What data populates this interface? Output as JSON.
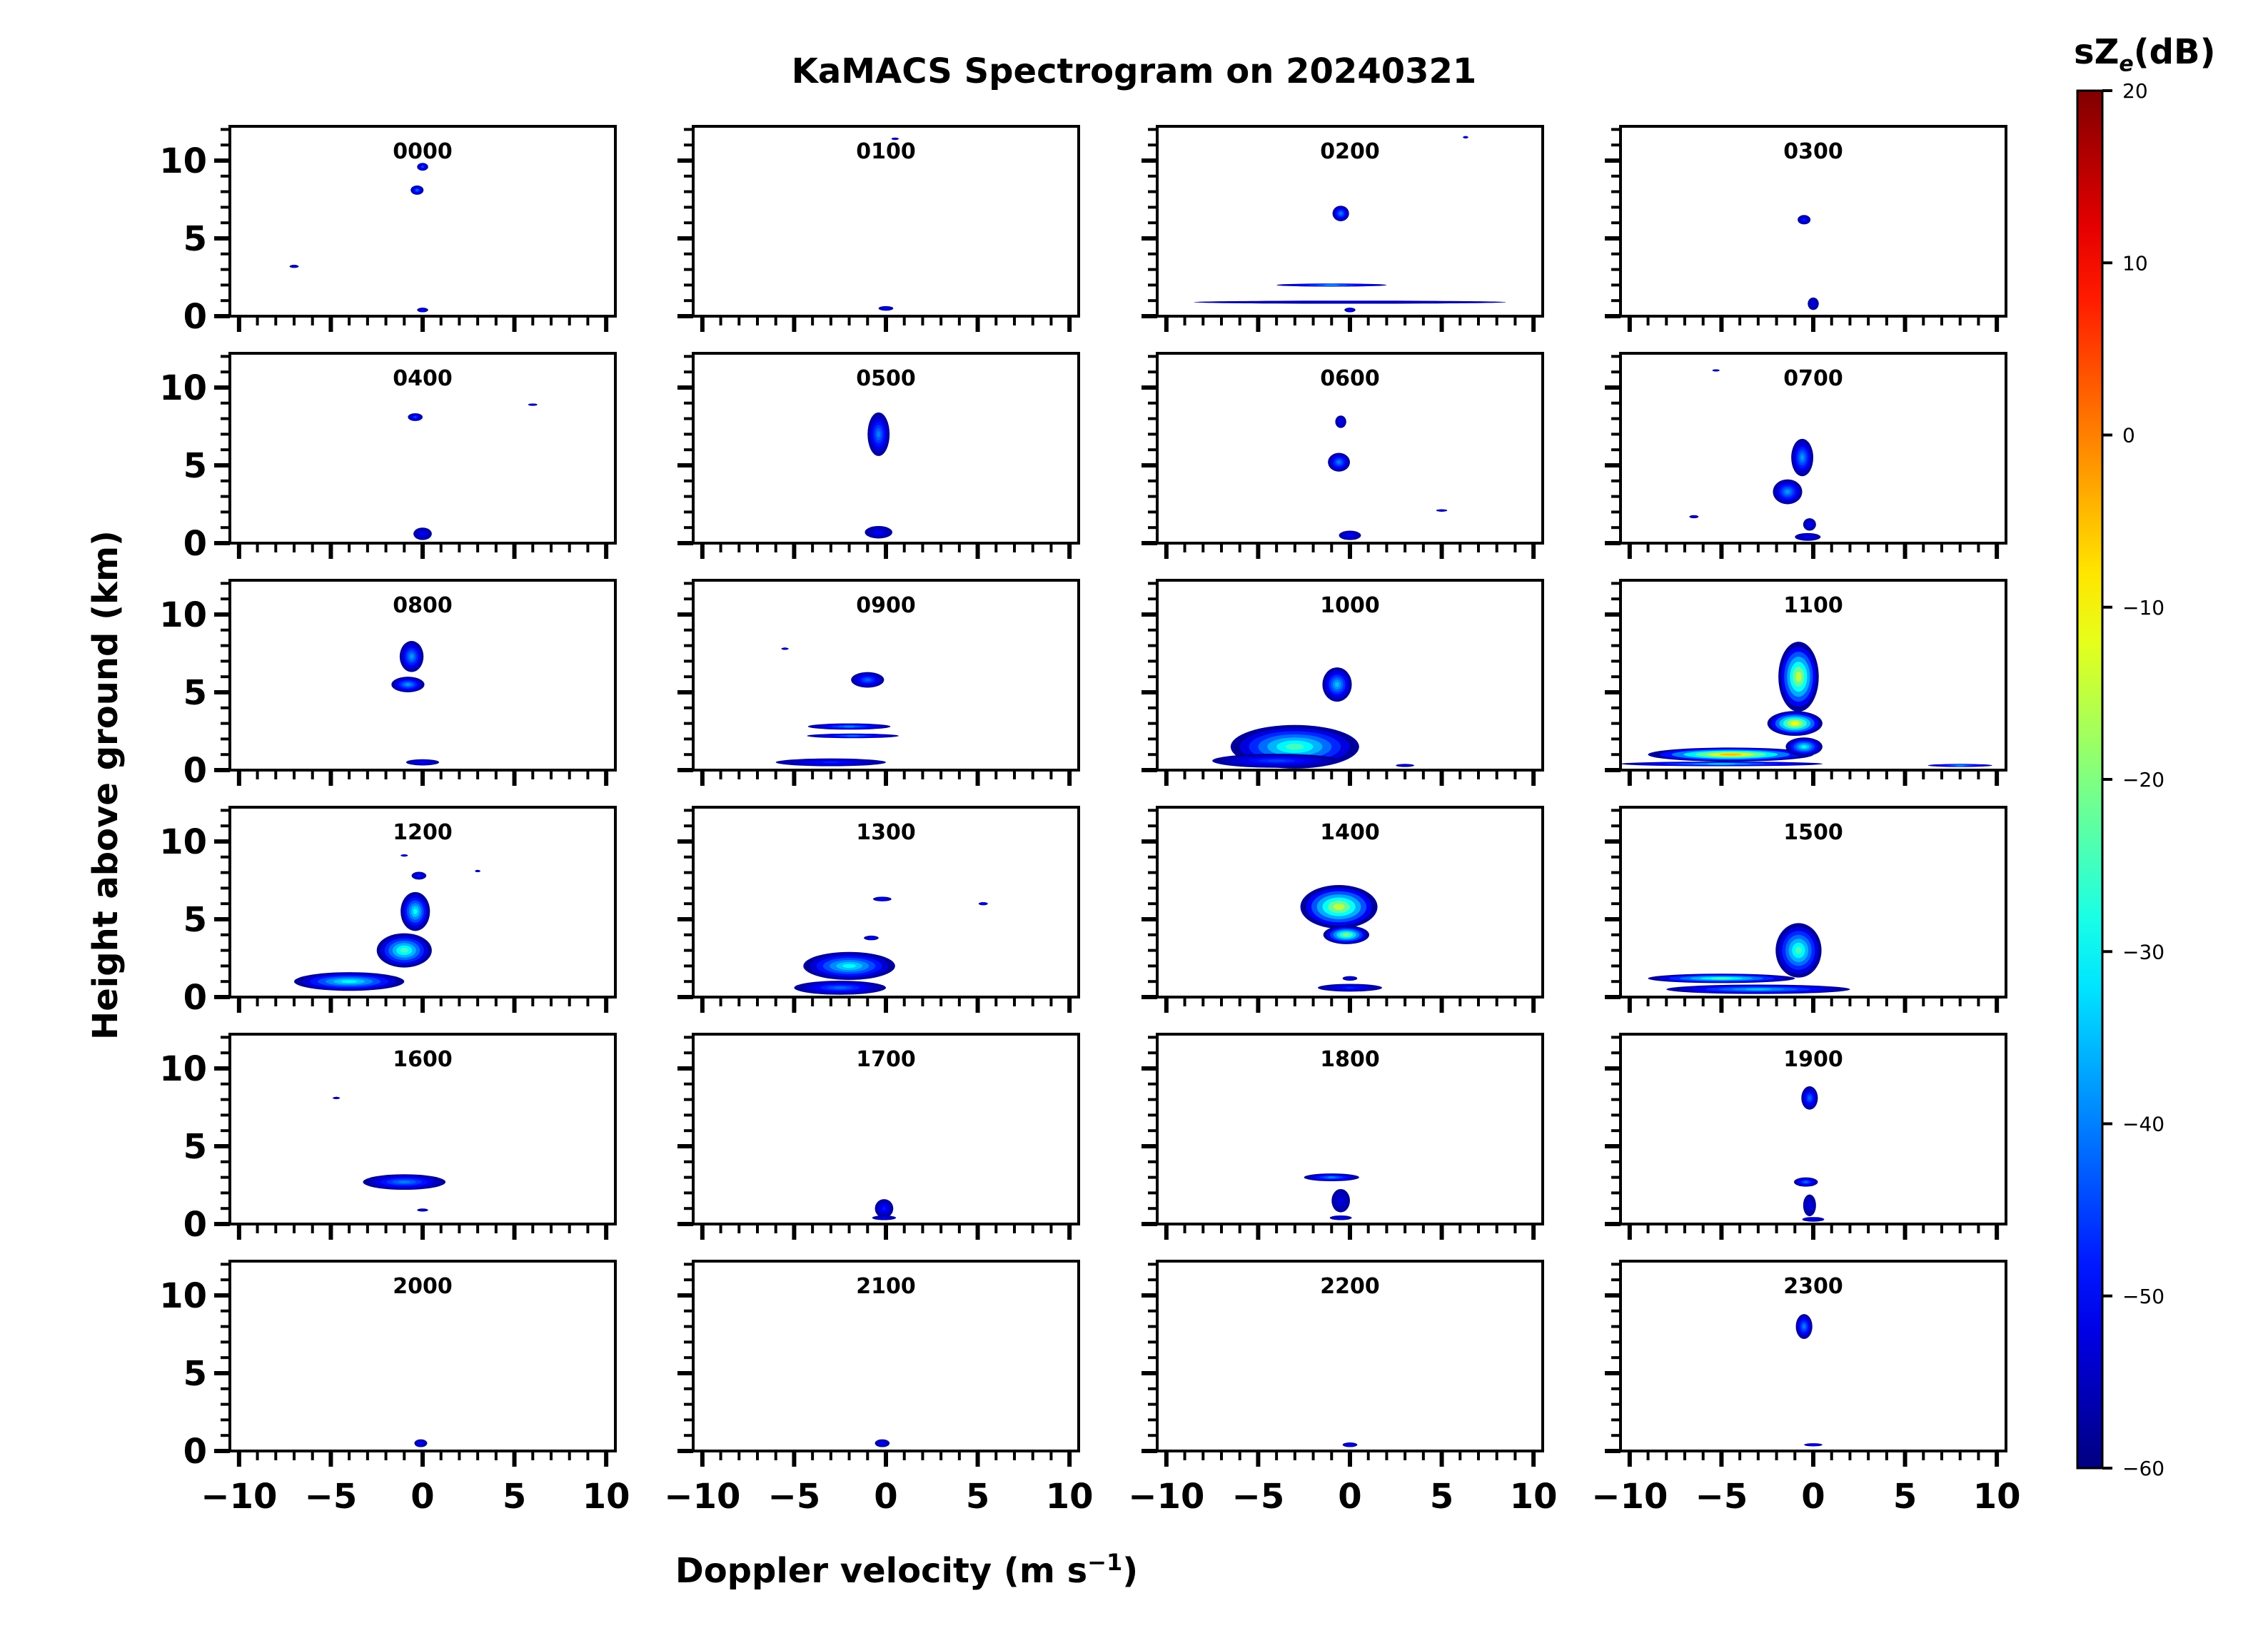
{
  "chart_data": {
    "type": "heatmap",
    "title": "KaMACS Spectrogram on 20240321",
    "xlabel_main": "Doppler velocity (m s",
    "xlabel_sup": "−1",
    "xlabel_tail": ")",
    "ylabel": "Height above ground (km)",
    "xlim": [
      -10.5,
      10.5
    ],
    "ylim": [
      0,
      12.2
    ],
    "x_ticks": [
      -10,
      -5,
      0,
      5,
      10
    ],
    "x_tick_labels": [
      "−10",
      "−5",
      "0",
      "5",
      "10"
    ],
    "y_ticks": [
      0,
      5,
      10
    ],
    "y_tick_labels": [
      "0",
      "5",
      "10"
    ],
    "colorbar": {
      "label_main": "sZ",
      "label_sub": "e",
      "label_tail": "(dB)",
      "range": [
        -60,
        20
      ],
      "ticks": [
        20,
        10,
        0,
        -10,
        -20,
        -30,
        -40,
        -50,
        -60
      ],
      "tick_labels": [
        "20",
        "10",
        "0",
        "−10",
        "−20",
        "−30",
        "−40",
        "−50",
        "−60"
      ],
      "colormap": "jet"
    },
    "panels": [
      {
        "label": "0000",
        "blobs": [
          [
            0,
            9.6,
            0.6,
            0.5,
            -45
          ],
          [
            -0.3,
            8.1,
            0.7,
            0.6,
            -42
          ],
          [
            0,
            0.4,
            0.6,
            0.3,
            -50
          ],
          [
            -7,
            3.2,
            0.5,
            0.2,
            -55
          ]
        ]
      },
      {
        "label": "0100",
        "blobs": [
          [
            0,
            0.5,
            0.8,
            0.3,
            -50
          ],
          [
            0.5,
            11.4,
            0.4,
            0.15,
            -55
          ]
        ]
      },
      {
        "label": "0200",
        "blobs": [
          [
            -0.5,
            6.6,
            0.9,
            1.0,
            -40
          ],
          [
            -1,
            2.0,
            6,
            0.2,
            -40
          ],
          [
            0,
            0.9,
            17,
            0.2,
            -55
          ],
          [
            0,
            0.4,
            0.6,
            0.3,
            -50
          ],
          [
            6.3,
            11.5,
            0.3,
            0.1,
            -55
          ]
        ]
      },
      {
        "label": "0300",
        "blobs": [
          [
            -0.5,
            6.2,
            0.7,
            0.6,
            -48
          ],
          [
            0,
            0.8,
            0.6,
            0.8,
            -52
          ]
        ]
      },
      {
        "label": "0400",
        "blobs": [
          [
            -0.4,
            8.1,
            0.8,
            0.5,
            -45
          ],
          [
            0,
            0.6,
            1.0,
            0.8,
            -50
          ],
          [
            6,
            8.9,
            0.5,
            0.15,
            -55
          ]
        ]
      },
      {
        "label": "0500",
        "blobs": [
          [
            -0.4,
            7.0,
            1.2,
            2.8,
            -40
          ],
          [
            -0.4,
            0.7,
            1.5,
            0.8,
            -50
          ]
        ]
      },
      {
        "label": "0600",
        "blobs": [
          [
            -0.6,
            5.2,
            1.2,
            1.2,
            -40
          ],
          [
            -0.5,
            7.8,
            0.6,
            0.8,
            -50
          ],
          [
            0,
            0.5,
            1.2,
            0.6,
            -50
          ],
          [
            5,
            2.1,
            0.6,
            0.15,
            -55
          ]
        ]
      },
      {
        "label": "0700",
        "blobs": [
          [
            -0.6,
            5.5,
            1.2,
            2.4,
            -38
          ],
          [
            -1.4,
            3.3,
            1.6,
            1.6,
            -38
          ],
          [
            -0.2,
            1.2,
            0.7,
            0.8,
            -50
          ],
          [
            -0.3,
            0.4,
            1.4,
            0.5,
            -50
          ],
          [
            -5.3,
            11.1,
            0.4,
            0.12,
            -55
          ],
          [
            -6.5,
            1.7,
            0.5,
            0.2,
            -55
          ]
        ]
      },
      {
        "label": "0800",
        "blobs": [
          [
            -0.6,
            7.3,
            1.3,
            2.0,
            -38
          ],
          [
            -0.8,
            5.5,
            1.8,
            1.0,
            -38
          ],
          [
            0,
            0.5,
            1.8,
            0.4,
            -50
          ]
        ]
      },
      {
        "label": "0900",
        "blobs": [
          [
            -1,
            5.8,
            1.8,
            1.0,
            -42
          ],
          [
            -2,
            2.8,
            4.5,
            0.4,
            -40
          ],
          [
            -1.8,
            2.2,
            5,
            0.3,
            -42
          ],
          [
            -3,
            0.5,
            6,
            0.5,
            -48
          ],
          [
            -5.5,
            7.8,
            0.4,
            0.1,
            -55
          ]
        ]
      },
      {
        "label": "1000",
        "blobs": [
          [
            -0.7,
            5.5,
            1.6,
            2.2,
            -35
          ],
          [
            -3,
            1.5,
            7,
            2.8,
            -25
          ],
          [
            -4,
            0.6,
            7,
            0.9,
            -45
          ],
          [
            3,
            0.3,
            1,
            0.2,
            -55
          ]
        ]
      },
      {
        "label": "1100",
        "blobs": [
          [
            -0.8,
            6,
            2.2,
            4.5,
            -15
          ],
          [
            -1,
            3.0,
            3,
            1.6,
            -10
          ],
          [
            -4.5,
            1.0,
            9,
            0.9,
            -5
          ],
          [
            -5,
            0.4,
            11,
            0.3,
            -35
          ],
          [
            8,
            0.3,
            3.5,
            0.2,
            -40
          ],
          [
            -0.5,
            1.5,
            2,
            1.2,
            -30
          ]
        ]
      },
      {
        "label": "1200",
        "blobs": [
          [
            -0.4,
            5.5,
            1.6,
            2.5,
            -30
          ],
          [
            -1,
            3.0,
            3,
            2.2,
            -25
          ],
          [
            -4,
            1.0,
            6,
            1.2,
            -30
          ],
          [
            -0.2,
            7.8,
            0.8,
            0.5,
            -48
          ],
          [
            3,
            8.1,
            0.3,
            0.1,
            -55
          ],
          [
            -1,
            9.1,
            0.4,
            0.1,
            -55
          ]
        ]
      },
      {
        "label": "1300",
        "blobs": [
          [
            -2,
            2.0,
            5,
            1.8,
            -30
          ],
          [
            -2.5,
            0.6,
            5,
            0.9,
            -42
          ],
          [
            -0.2,
            6.3,
            1,
            0.3,
            -50
          ],
          [
            5.3,
            6.0,
            0.5,
            0.2,
            -50
          ],
          [
            -0.8,
            3.8,
            0.8,
            0.3,
            -50
          ]
        ]
      },
      {
        "label": "1400",
        "blobs": [
          [
            -0.6,
            5.8,
            4.2,
            2.8,
            -15
          ],
          [
            -0.2,
            4.0,
            2.5,
            1.2,
            -20
          ],
          [
            0,
            0.6,
            3.5,
            0.5,
            -48
          ],
          [
            0,
            1.2,
            0.8,
            0.3,
            -52
          ]
        ]
      },
      {
        "label": "1500",
        "blobs": [
          [
            -0.8,
            3.0,
            2.5,
            3.5,
            -25
          ],
          [
            -5,
            1.2,
            8,
            0.6,
            -25
          ],
          [
            -3,
            0.5,
            10,
            0.6,
            -35
          ]
        ]
      },
      {
        "label": "1600",
        "blobs": [
          [
            -1,
            2.7,
            4.5,
            1.0,
            -40
          ],
          [
            0,
            0.9,
            0.6,
            0.2,
            -55
          ],
          [
            -4.7,
            8.1,
            0.4,
            0.12,
            -55
          ]
        ]
      },
      {
        "label": "1700",
        "blobs": [
          [
            -0.1,
            1.0,
            1.0,
            1.2,
            -48
          ],
          [
            -0.1,
            0.4,
            1.3,
            0.3,
            -52
          ]
        ]
      },
      {
        "label": "1800",
        "blobs": [
          [
            -1,
            3.0,
            3,
            0.5,
            -40
          ],
          [
            -0.5,
            1.5,
            1,
            1.5,
            -52
          ],
          [
            -0.5,
            0.4,
            1.2,
            0.3,
            -52
          ]
        ]
      },
      {
        "label": "1900",
        "blobs": [
          [
            -0.2,
            8.1,
            0.9,
            1.5,
            -42
          ],
          [
            -0.4,
            2.7,
            1.3,
            0.6,
            -42
          ],
          [
            -0.2,
            1.2,
            0.7,
            1.4,
            -52
          ],
          [
            0,
            0.3,
            1.2,
            0.3,
            -52
          ]
        ]
      },
      {
        "label": "2000",
        "blobs": [
          [
            -0.1,
            0.5,
            0.7,
            0.5,
            -50
          ]
        ]
      },
      {
        "label": "2100",
        "blobs": [
          [
            -0.2,
            0.5,
            0.8,
            0.5,
            -50
          ]
        ]
      },
      {
        "label": "2200",
        "blobs": [
          [
            0,
            0.4,
            0.8,
            0.3,
            -50
          ]
        ]
      },
      {
        "label": "2300",
        "blobs": [
          [
            -0.5,
            8.0,
            0.9,
            1.6,
            -40
          ],
          [
            0,
            0.4,
            1.0,
            0.2,
            -52
          ]
        ]
      }
    ]
  }
}
